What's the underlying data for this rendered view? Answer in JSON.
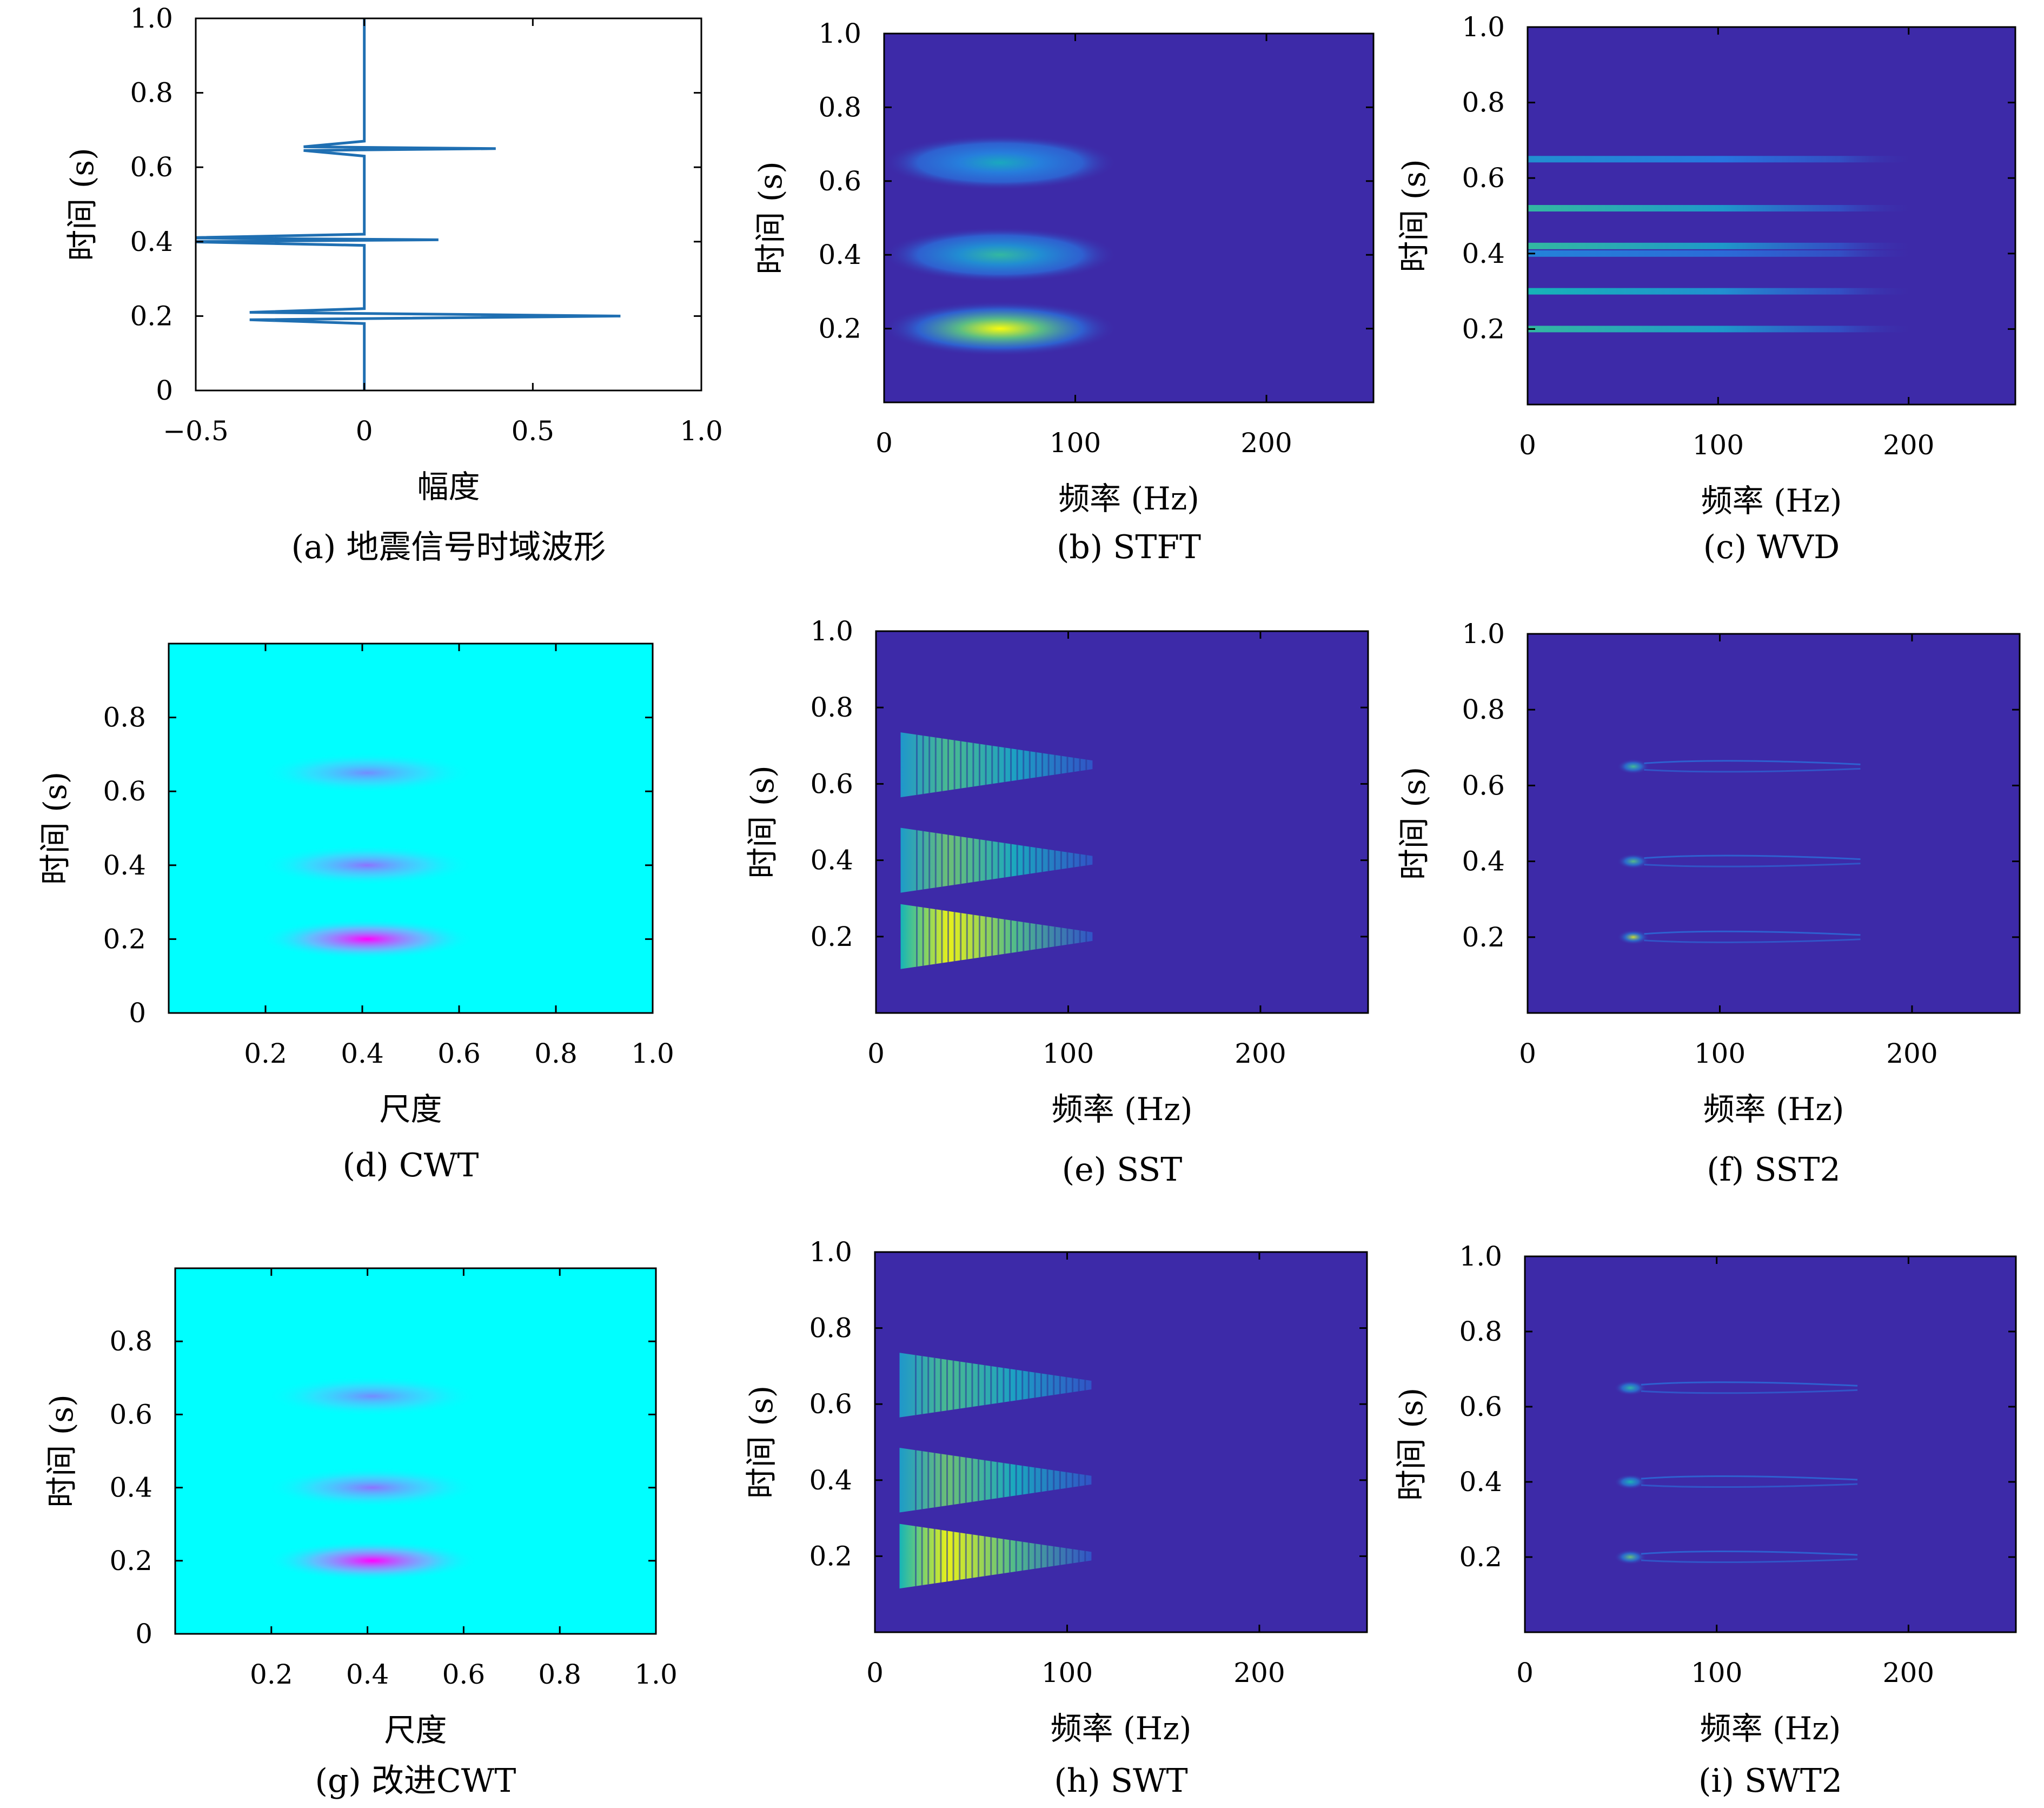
{
  "colors": {
    "parula_bg": "#3d2aa8",
    "cwt_bg": "#00ffff",
    "cwt_peak": "#ff00ff",
    "line": "#1f6fb2"
  },
  "chart_data": [
    {
      "id": "a",
      "type": "line",
      "caption": "(a) 地震信号时域波形",
      "xlabel": "幅度",
      "ylabel": "时间 (s)",
      "xlim": [
        -0.5,
        1.0
      ],
      "ylim": [
        0,
        1.0
      ],
      "xticks": [
        "−0.5",
        "0",
        "0.5",
        "1.0"
      ],
      "xtick_values": [
        -0.5,
        0,
        0.5,
        1.0
      ],
      "yticks": [
        "0",
        "0.2",
        "0.4",
        "0.6",
        "0.8",
        "1.0"
      ],
      "ytick_values": [
        0,
        0.2,
        0.4,
        0.6,
        0.8,
        1.0
      ],
      "series": [
        {
          "x": [
            0,
            0,
            -0.34,
            0.76,
            -0.34,
            0,
            0,
            -0.55,
            0.22,
            -0.55,
            0,
            0,
            -0.18,
            0.39,
            -0.18,
            0,
            0
          ],
          "y": [
            0,
            0.18,
            0.19,
            0.2,
            0.21,
            0.22,
            0.39,
            0.4,
            0.405,
            0.41,
            0.42,
            0.63,
            0.645,
            0.65,
            0.655,
            0.67,
            1.0
          ]
        }
      ]
    },
    {
      "id": "b",
      "type": "heatmap",
      "colormap": "parula",
      "style": "smooth",
      "caption": "(b) STFT",
      "xlabel": "频率 (Hz)",
      "ylabel": "时间 (s)",
      "xlim": [
        0,
        256
      ],
      "ylim": [
        0,
        1.0
      ],
      "xticks": [
        "0",
        "100",
        "200"
      ],
      "xtick_values": [
        0,
        100,
        200
      ],
      "yticks": [
        "0.2",
        "0.4",
        "0.6",
        "0.8",
        "1.0"
      ],
      "ytick_values": [
        0.2,
        0.4,
        0.6,
        0.8,
        1.0
      ],
      "blobs": [
        {
          "t": 0.2,
          "f": 55,
          "intensity": 1.0
        },
        {
          "t": 0.4,
          "f": 55,
          "intensity": 0.55
        },
        {
          "t": 0.65,
          "f": 55,
          "intensity": 0.45
        }
      ]
    },
    {
      "id": "c",
      "type": "heatmap",
      "colormap": "parula",
      "style": "lines",
      "caption": "(c) WVD",
      "xlabel": "频率 (Hz)",
      "ylabel": "时间 (s)",
      "xlim": [
        0,
        256
      ],
      "ylim": [
        0,
        1.0
      ],
      "xticks": [
        "0",
        "100",
        "200"
      ],
      "xtick_values": [
        0,
        100,
        200
      ],
      "yticks": [
        "0.2",
        "0.4",
        "0.6",
        "0.8",
        "1.0"
      ],
      "ytick_values": [
        0.2,
        0.4,
        0.6,
        0.8,
        1.0
      ],
      "lines": [
        {
          "t": 0.2,
          "intensity": 0.55
        },
        {
          "t": 0.3,
          "intensity": 0.5
        },
        {
          "t": 0.4,
          "intensity": 0.3
        },
        {
          "t": 0.42,
          "intensity": 0.55
        },
        {
          "t": 0.52,
          "intensity": 0.55
        },
        {
          "t": 0.65,
          "intensity": 0.35
        }
      ]
    },
    {
      "id": "d",
      "type": "heatmap",
      "colormap": "cool",
      "style": "smooth",
      "caption": "(d) CWT",
      "xlabel": "尺度",
      "ylabel": "时间 (s)",
      "xlim": [
        0,
        1.0
      ],
      "ylim": [
        0,
        1.0
      ],
      "xticks": [
        "0.2",
        "0.4",
        "0.6",
        "0.8",
        "1.0"
      ],
      "xtick_values": [
        0.2,
        0.4,
        0.6,
        0.8,
        1.0
      ],
      "yticks": [
        "0",
        "0.2",
        "0.4",
        "0.6",
        "0.8"
      ],
      "ytick_values": [
        0,
        0.2,
        0.4,
        0.6,
        0.8
      ],
      "blobs": [
        {
          "t": 0.2,
          "s": 0.35,
          "intensity": 1.0
        },
        {
          "t": 0.4,
          "s": 0.35,
          "intensity": 0.55
        },
        {
          "t": 0.65,
          "s": 0.35,
          "intensity": 0.45
        }
      ]
    },
    {
      "id": "e",
      "type": "heatmap",
      "colormap": "parula",
      "style": "comb",
      "caption": "(e) SST",
      "xlabel": "频率 (Hz)",
      "ylabel": "时间 (s)",
      "xlim": [
        0,
        256
      ],
      "ylim": [
        0,
        1.0
      ],
      "xticks": [
        "0",
        "100",
        "200"
      ],
      "xtick_values": [
        0,
        100,
        200
      ],
      "yticks": [
        "0.2",
        "0.4",
        "0.6",
        "0.8",
        "1.0"
      ],
      "ytick_values": [
        0.2,
        0.4,
        0.6,
        0.8,
        1.0
      ],
      "blobs": [
        {
          "t": 0.2,
          "f": 55,
          "intensity": 1.0
        },
        {
          "t": 0.4,
          "f": 55,
          "intensity": 0.5
        },
        {
          "t": 0.65,
          "f": 55,
          "intensity": 0.4
        }
      ]
    },
    {
      "id": "f",
      "type": "heatmap",
      "colormap": "parula",
      "style": "points",
      "caption": "(f) SST2",
      "xlabel": "频率 (Hz)",
      "ylabel": "时间 (s)",
      "xlim": [
        0,
        256
      ],
      "ylim": [
        0,
        1.0
      ],
      "xticks": [
        "0",
        "100",
        "200"
      ],
      "xtick_values": [
        0,
        100,
        200
      ],
      "yticks": [
        "0.2",
        "0.4",
        "0.6",
        "0.8",
        "1.0"
      ],
      "ytick_values": [
        0.2,
        0.4,
        0.6,
        0.8,
        1.0
      ],
      "blobs": [
        {
          "t": 0.2,
          "f": 55,
          "intensity": 0.8
        },
        {
          "t": 0.4,
          "f": 55,
          "intensity": 0.45
        },
        {
          "t": 0.65,
          "f": 55,
          "intensity": 0.4
        }
      ]
    },
    {
      "id": "g",
      "type": "heatmap",
      "colormap": "cool",
      "style": "smooth",
      "caption": "(g)  改进CWT",
      "xlabel": "尺度",
      "ylabel": "时间 (s)",
      "xlim": [
        0,
        1.0
      ],
      "ylim": [
        0,
        1.0
      ],
      "xticks": [
        "0.2",
        "0.4",
        "0.6",
        "0.8",
        "1.0"
      ],
      "xtick_values": [
        0.2,
        0.4,
        0.6,
        0.8,
        1.0
      ],
      "yticks": [
        "0",
        "0.2",
        "0.4",
        "0.6",
        "0.8"
      ],
      "ytick_values": [
        0,
        0.2,
        0.4,
        0.6,
        0.8
      ],
      "blobs": [
        {
          "t": 0.2,
          "s": 0.35,
          "intensity": 1.0
        },
        {
          "t": 0.4,
          "s": 0.35,
          "intensity": 0.55
        },
        {
          "t": 0.65,
          "s": 0.35,
          "intensity": 0.45
        }
      ]
    },
    {
      "id": "h",
      "type": "heatmap",
      "colormap": "parula",
      "style": "comb",
      "caption": "(h) SWT",
      "xlabel": "频率 (Hz)",
      "ylabel": "时间 (s)",
      "xlim": [
        0,
        256
      ],
      "ylim": [
        0,
        1.0
      ],
      "xticks": [
        "0",
        "100",
        "200"
      ],
      "xtick_values": [
        0,
        100,
        200
      ],
      "yticks": [
        "0.2",
        "0.4",
        "0.6",
        "0.8",
        "1.0"
      ],
      "ytick_values": [
        0.2,
        0.4,
        0.6,
        0.8,
        1.0
      ],
      "blobs": [
        {
          "t": 0.2,
          "f": 55,
          "intensity": 1.0
        },
        {
          "t": 0.4,
          "f": 55,
          "intensity": 0.5
        },
        {
          "t": 0.65,
          "f": 55,
          "intensity": 0.4
        }
      ]
    },
    {
      "id": "i",
      "type": "heatmap",
      "colormap": "parula",
      "style": "points",
      "caption": "(i) SWT2",
      "xlabel": "频率 (Hz)",
      "ylabel": "时间 (s)",
      "xlim": [
        0,
        256
      ],
      "ylim": [
        0,
        1.0
      ],
      "xticks": [
        "0",
        "100",
        "200"
      ],
      "xtick_values": [
        0,
        100,
        200
      ],
      "yticks": [
        "0.2",
        "0.4",
        "0.6",
        "0.8",
        "1.0"
      ],
      "ytick_values": [
        0.2,
        0.4,
        0.6,
        0.8,
        1.0
      ],
      "blobs": [
        {
          "t": 0.2,
          "f": 55,
          "intensity": 0.5
        },
        {
          "t": 0.4,
          "f": 55,
          "intensity": 0.3
        },
        {
          "t": 0.65,
          "f": 55,
          "intensity": 0.35
        }
      ]
    }
  ]
}
